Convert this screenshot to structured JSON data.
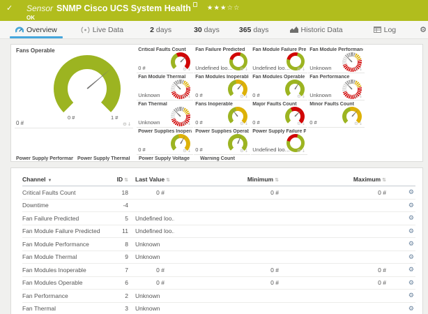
{
  "colors": {
    "header_green": "#b1bd1d",
    "accent_blue": "#45a6dc",
    "gauge_green": "#9cb421",
    "gauge_yellow": "#ddb108",
    "gauge_red": "#d10606",
    "gauge_gray": "#a0a0a0",
    "gauge_lightgray": "#d9d9d9"
  },
  "icons": {
    "check": "✓",
    "gear": "⚙",
    "pin": "↓",
    "sort": "⇅",
    "sort_down": "▼",
    "star_filled": "★",
    "star_empty": "☆"
  },
  "header": {
    "kind_label": "Sensor",
    "title": "SNMP Cisco UCS System Health",
    "status": "OK",
    "stars_filled": 3,
    "stars_total": 5
  },
  "tabs": [
    {
      "id": "overview",
      "label": "Overview",
      "icon": "gauge-icon",
      "active": true
    },
    {
      "id": "live-data",
      "label": "Live Data",
      "icon": "live-icon"
    },
    {
      "id": "2-days",
      "strong": "2",
      "label": "days"
    },
    {
      "id": "30-days",
      "strong": "30",
      "label": "days"
    },
    {
      "id": "365-days",
      "strong": "365",
      "label": "days"
    },
    {
      "id": "historic-data",
      "label": "Historic Data",
      "icon": "historic-icon"
    },
    {
      "id": "log",
      "label": "Log",
      "icon": "log-icon"
    },
    {
      "id": "settings",
      "label": "Settings",
      "icon": "settings-icon"
    }
  ],
  "primary_gauge": {
    "title": "Fans Operable",
    "value": "0 #",
    "scale_min": "0 #",
    "scale_max": "1 #",
    "style": "arc",
    "segments": [
      {
        "c": "green",
        "p": 100
      }
    ],
    "needle": 50
  },
  "small_gauges": [
    {
      "title": "Critical Faults Count",
      "value": "0 #",
      "style": "arc",
      "segments": [
        {
          "c": "green",
          "p": 40
        },
        {
          "c": "red",
          "p": 60
        }
      ],
      "needle": 45
    },
    {
      "title": "Fan Failure Predicted",
      "value": "Undefined lookup v...",
      "style": "ring",
      "segments": [
        {
          "c": "red",
          "p": 25
        },
        {
          "c": "green",
          "p": 75
        }
      ],
      "needle": null
    },
    {
      "title": "Fan Module Failure Predicted",
      "value": "Undefined lookup v...",
      "style": "ring",
      "segments": [
        {
          "c": "red",
          "p": 25
        },
        {
          "c": "green",
          "p": 75
        }
      ],
      "needle": null
    },
    {
      "title": "Fan Module Performance",
      "value": "Unknown",
      "style": "dashed",
      "segments": [
        {
          "c": "gray",
          "p": 6
        },
        {
          "c": "yellow",
          "p": 14
        },
        {
          "c": "red",
          "p": 50
        },
        {
          "c": "lightgray",
          "p": 17
        },
        {
          "c": "gray",
          "p": 13
        }
      ],
      "needle": -45
    },
    {
      "title": "Fan Module Thermal",
      "value": "Unknown",
      "style": "dashed",
      "segments": [
        {
          "c": "gray",
          "p": 6
        },
        {
          "c": "yellow",
          "p": 14
        },
        {
          "c": "red",
          "p": 50
        },
        {
          "c": "lightgray",
          "p": 17
        },
        {
          "c": "gray",
          "p": 13
        }
      ],
      "needle": -45
    },
    {
      "title": "Fan Modules Inoperable",
      "value": "0 #",
      "style": "arc",
      "segments": [
        {
          "c": "green",
          "p": 45
        },
        {
          "c": "yellow",
          "p": 55
        }
      ],
      "needle": 40
    },
    {
      "title": "Fan Modules Operable",
      "value": "0 #",
      "style": "arc",
      "segments": [
        {
          "c": "green",
          "p": 100
        }
      ],
      "needle": 33
    },
    {
      "title": "Fan Performance",
      "value": "Unknown",
      "style": "dashed",
      "segments": [
        {
          "c": "gray",
          "p": 6
        },
        {
          "c": "yellow",
          "p": 14
        },
        {
          "c": "red",
          "p": 50
        },
        {
          "c": "lightgray",
          "p": 17
        },
        {
          "c": "gray",
          "p": 13
        }
      ],
      "needle": -45
    },
    {
      "title": "Fan Thermal",
      "value": "Unknown",
      "style": "dashed",
      "segments": [
        {
          "c": "gray",
          "p": 6
        },
        {
          "c": "yellow",
          "p": 14
        },
        {
          "c": "red",
          "p": 50
        },
        {
          "c": "lightgray",
          "p": 17
        },
        {
          "c": "gray",
          "p": 13
        }
      ],
      "needle": -45
    },
    {
      "title": "Fans Inoperable",
      "value": "0 #",
      "style": "arc",
      "segments": [
        {
          "c": "green",
          "p": 45
        },
        {
          "c": "yellow",
          "p": 55
        }
      ],
      "needle": -38
    },
    {
      "title": "Major Faults Count",
      "value": "0 #",
      "style": "arc",
      "segments": [
        {
          "c": "green",
          "p": 40
        },
        {
          "c": "red",
          "p": 60
        }
      ],
      "needle": 45
    },
    {
      "title": "Minor Faults Count",
      "value": "0 #",
      "style": "arc",
      "segments": [
        {
          "c": "green",
          "p": 45
        },
        {
          "c": "yellow",
          "p": 55
        }
      ],
      "needle": 42
    },
    {
      "title": "Power Supplies Inoperable",
      "value": "0 #",
      "style": "arc",
      "segments": [
        {
          "c": "green",
          "p": 45
        },
        {
          "c": "yellow",
          "p": 55
        }
      ],
      "needle": 30
    },
    {
      "title": "Power Supplies Operable",
      "value": "0 #",
      "style": "arc",
      "segments": [
        {
          "c": "green",
          "p": 100
        }
      ],
      "needle": 22
    },
    {
      "title": "Power Supply Failure Predicted",
      "value": "Undefined lookup v...",
      "style": "ring",
      "segments": [
        {
          "c": "red",
          "p": 25
        },
        {
          "c": "green",
          "p": 75
        }
      ],
      "needle": null
    }
  ],
  "bottom_gauges": [
    {
      "title": "Power Supply Performance",
      "value": "Unknown",
      "style": "dashed",
      "segments": [
        {
          "c": "gray",
          "p": 6
        },
        {
          "c": "yellow",
          "p": 14
        },
        {
          "c": "red",
          "p": 50
        },
        {
          "c": "lightgray",
          "p": 17
        },
        {
          "c": "gray",
          "p": 13
        }
      ],
      "needle": -45
    },
    {
      "title": "Power Supply Thermal",
      "value": "Unknown",
      "style": "dashed",
      "segments": [
        {
          "c": "gray",
          "p": 6
        },
        {
          "c": "yellow",
          "p": 14
        },
        {
          "c": "red",
          "p": 50
        },
        {
          "c": "lightgray",
          "p": 17
        },
        {
          "c": "gray",
          "p": 13
        }
      ],
      "needle": -45
    },
    {
      "title": "Power Supply Voltage",
      "value": "Unknown",
      "style": "dashed",
      "segments": [
        {
          "c": "gray",
          "p": 6
        },
        {
          "c": "yellow",
          "p": 14
        },
        {
          "c": "red",
          "p": 50
        },
        {
          "c": "lightgray",
          "p": 17
        },
        {
          "c": "gray",
          "p": 13
        }
      ],
      "needle": -45
    },
    {
      "title": "Warning Count",
      "value": "0 #",
      "style": "arc",
      "segments": [
        {
          "c": "green",
          "p": 45
        },
        {
          "c": "yellow",
          "p": 55
        }
      ],
      "needle": 38
    }
  ],
  "table": {
    "columns": [
      "Channel",
      "ID",
      "Last Value",
      "Minimum",
      "Maximum"
    ],
    "rows": [
      {
        "channel": "Critical Faults Count",
        "id": "18",
        "last": "0 #",
        "min": "0 #",
        "max": "0 #"
      },
      {
        "channel": "Downtime",
        "id": "-4",
        "last": "",
        "min": "",
        "max": ""
      },
      {
        "channel": "Fan Failure Predicted",
        "id": "5",
        "last": "Undefined loo...",
        "min": "",
        "max": ""
      },
      {
        "channel": "Fan Module Failure Predicted",
        "id": "11",
        "last": "Undefined loo...",
        "min": "",
        "max": ""
      },
      {
        "channel": "Fan Module Performance",
        "id": "8",
        "last": "Unknown",
        "min": "",
        "max": ""
      },
      {
        "channel": "Fan Module Thermal",
        "id": "9",
        "last": "Unknown",
        "min": "",
        "max": ""
      },
      {
        "channel": "Fan Modules Inoperable",
        "id": "7",
        "last": "0 #",
        "min": "0 #",
        "max": "0 #"
      },
      {
        "channel": "Fan Modules Operable",
        "id": "6",
        "last": "0 #",
        "min": "0 #",
        "max": "0 #"
      },
      {
        "channel": "Fan Performance",
        "id": "2",
        "last": "Unknown",
        "min": "",
        "max": ""
      },
      {
        "channel": "Fan Thermal",
        "id": "3",
        "last": "Unknown",
        "min": "",
        "max": ""
      }
    ]
  }
}
